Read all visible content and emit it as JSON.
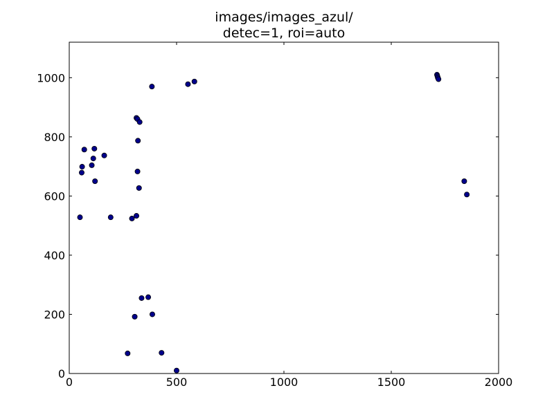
{
  "chart_data": {
    "type": "scatter",
    "title_lines": [
      "images/images_azul/",
      "detec=1, roi=auto"
    ],
    "xlabel": "",
    "ylabel": "",
    "xlim": [
      0,
      2000
    ],
    "ylim": [
      0,
      1120
    ],
    "xticks": [
      0,
      500,
      1000,
      1500,
      2000
    ],
    "yticks": [
      0,
      200,
      400,
      600,
      800,
      1000
    ],
    "grid": false,
    "marker_color": "#00008b",
    "marker_edge": "#000000",
    "points": [
      {
        "x": 50,
        "y": 528
      },
      {
        "x": 58,
        "y": 679
      },
      {
        "x": 60,
        "y": 699
      },
      {
        "x": 70,
        "y": 757
      },
      {
        "x": 105,
        "y": 704
      },
      {
        "x": 112,
        "y": 727
      },
      {
        "x": 117,
        "y": 760
      },
      {
        "x": 120,
        "y": 650
      },
      {
        "x": 163,
        "y": 737
      },
      {
        "x": 193,
        "y": 528
      },
      {
        "x": 272,
        "y": 68
      },
      {
        "x": 292,
        "y": 524
      },
      {
        "x": 305,
        "y": 192
      },
      {
        "x": 313,
        "y": 533
      },
      {
        "x": 313,
        "y": 864
      },
      {
        "x": 318,
        "y": 860
      },
      {
        "x": 318,
        "y": 683
      },
      {
        "x": 320,
        "y": 787
      },
      {
        "x": 325,
        "y": 627
      },
      {
        "x": 328,
        "y": 850
      },
      {
        "x": 337,
        "y": 255
      },
      {
        "x": 368,
        "y": 258
      },
      {
        "x": 385,
        "y": 970
      },
      {
        "x": 387,
        "y": 200
      },
      {
        "x": 430,
        "y": 70
      },
      {
        "x": 500,
        "y": 10
      },
      {
        "x": 553,
        "y": 978
      },
      {
        "x": 583,
        "y": 987
      },
      {
        "x": 1713,
        "y": 1010
      },
      {
        "x": 1715,
        "y": 1005
      },
      {
        "x": 1717,
        "y": 1000
      },
      {
        "x": 1720,
        "y": 995
      },
      {
        "x": 1840,
        "y": 650
      },
      {
        "x": 1852,
        "y": 605
      }
    ]
  }
}
